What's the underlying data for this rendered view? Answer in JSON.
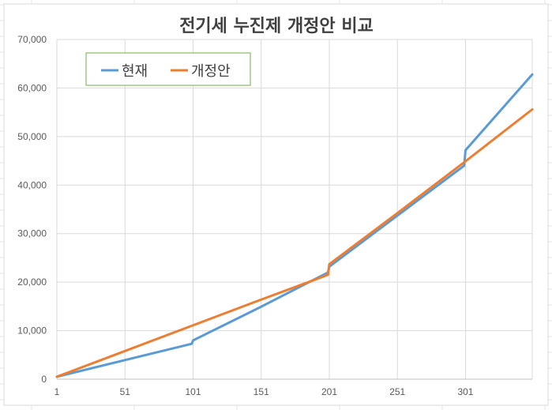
{
  "chart_data": {
    "type": "line",
    "title": "전기세 누진제 개정안 비교",
    "xlabel": "",
    "ylabel": "",
    "xlim": [
      1,
      350
    ],
    "ylim": [
      0,
      70000
    ],
    "x_ticks": [
      "1",
      "51",
      "101",
      "151",
      "201",
      "251",
      "301"
    ],
    "y_ticks": [
      "0",
      "10,000",
      "20,000",
      "30,000",
      "40,000",
      "50,000",
      "60,000",
      "70,000"
    ],
    "grid": true,
    "legend_position": "top-left",
    "series": [
      {
        "name": "현재",
        "color": "#5b9bd5",
        "points": [
          [
            1,
            500
          ],
          [
            100,
            7300
          ],
          [
            101,
            8000
          ],
          [
            150,
            14800
          ],
          [
            200,
            22000
          ],
          [
            201,
            23200
          ],
          [
            250,
            33500
          ],
          [
            300,
            44000
          ],
          [
            301,
            47200
          ],
          [
            350,
            62800
          ]
        ]
      },
      {
        "name": "개정안",
        "color": "#ed7d31",
        "points": [
          [
            1,
            500
          ],
          [
            100,
            11000
          ],
          [
            150,
            16300
          ],
          [
            200,
            21500
          ],
          [
            201,
            23700
          ],
          [
            250,
            34000
          ],
          [
            300,
            44700
          ],
          [
            350,
            55600
          ]
        ]
      }
    ]
  }
}
